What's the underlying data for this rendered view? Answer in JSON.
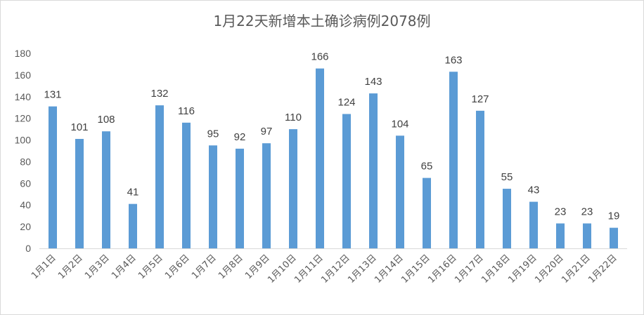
{
  "chart_data": {
    "type": "bar",
    "title": "1月22天新增本土确诊病例2078例",
    "xlabel": "",
    "ylabel": "",
    "ylim": [
      0,
      180
    ],
    "yticks": [
      0,
      20,
      40,
      60,
      80,
      100,
      120,
      140,
      160,
      180
    ],
    "grid": false,
    "legend": "none",
    "bar_color": "#5b9bd5",
    "categories": [
      "1月1日",
      "1月2日",
      "1月3日",
      "1月4日",
      "1月5日",
      "1月6日",
      "1月7日",
      "1月8日",
      "1月9日",
      "1月10日",
      "1月11日",
      "1月12日",
      "1月13日",
      "1月14日",
      "1月15日",
      "1月16日",
      "1月17日",
      "1月18日",
      "1月19日",
      "1月20日",
      "1月21日",
      "1月22日"
    ],
    "values": [
      131,
      101,
      108,
      41,
      132,
      116,
      95,
      92,
      97,
      110,
      166,
      124,
      143,
      104,
      65,
      163,
      127,
      55,
      43,
      23,
      23,
      19
    ]
  }
}
